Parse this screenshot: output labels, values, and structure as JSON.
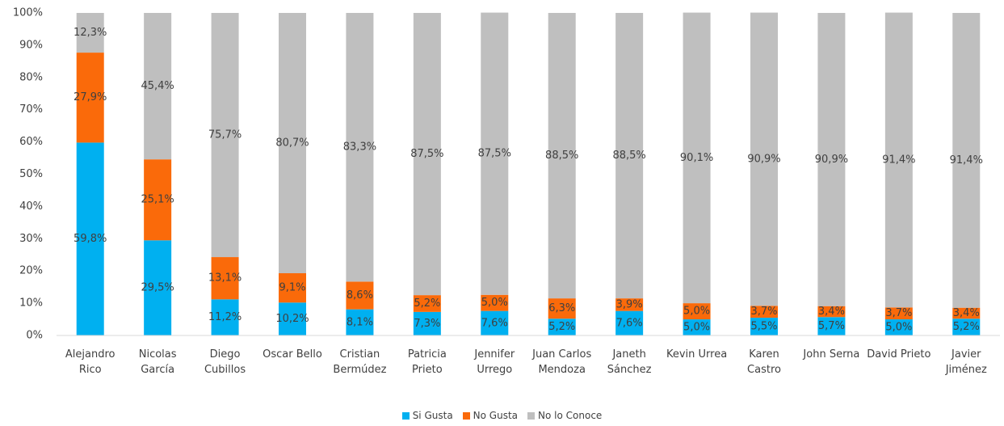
{
  "chart_data": {
    "type": "stacked_bar",
    "categories": [
      "Alejandro Rico",
      "Nicolas García",
      "Diego Cubillos",
      "Oscar Bello",
      "Cristian Bermúdez",
      "Patricia Prieto",
      "Jennifer Urrego",
      "Juan Carlos Mendoza",
      "Janeth Sánchez",
      "Kevin Urrea",
      "Karen Castro",
      "John Serna",
      "David Prieto",
      "Javier Jiménez"
    ],
    "series": [
      {
        "name": "Si Gusta",
        "color": "#00b0f0",
        "values": [
          59.8,
          29.5,
          11.2,
          10.2,
          8.1,
          7.3,
          7.6,
          5.2,
          7.6,
          5.0,
          5.5,
          5.7,
          5.0,
          5.2
        ],
        "value_labels": [
          "59,8%",
          "29,5%",
          "11,2%",
          "10,2%",
          "8,1%",
          "7,3%",
          "7,6%",
          "5,2%",
          "7,6%",
          "5,0%",
          "5,5%",
          "5,7%",
          "5,0%",
          "5,2%"
        ]
      },
      {
        "name": "No Gusta",
        "color": "#fa6a0a",
        "values": [
          27.9,
          25.1,
          13.1,
          9.1,
          8.6,
          5.2,
          5.0,
          6.3,
          3.9,
          5.0,
          3.7,
          3.4,
          3.7,
          3.4
        ],
        "value_labels": [
          "27,9%",
          "25,1%",
          "13,1%",
          "9,1%",
          "8,6%",
          "5,2%",
          "5,0%",
          "6,3%",
          "3,9%",
          "5,0%",
          "3,7%",
          "3,4%",
          "3,7%",
          "3,4%"
        ]
      },
      {
        "name": "No lo Conoce",
        "color": "#bfbfbf",
        "values": [
          12.3,
          45.4,
          75.7,
          80.7,
          83.3,
          87.5,
          87.5,
          88.5,
          88.5,
          90.1,
          90.9,
          90.9,
          91.4,
          91.4
        ],
        "value_labels": [
          "12,3%",
          "45,4%",
          "75,7%",
          "80,7%",
          "83,3%",
          "87,5%",
          "87,5%",
          "88,5%",
          "88,5%",
          "90,1%",
          "90,9%",
          "90,9%",
          "91,4%",
          "91,4%"
        ]
      }
    ],
    "ylim": [
      0,
      100
    ],
    "yticks": [
      {
        "value": 0,
        "label": "0%"
      },
      {
        "value": 10,
        "label": "10%"
      },
      {
        "value": 20,
        "label": "20%"
      },
      {
        "value": 30,
        "label": "30%"
      },
      {
        "value": 40,
        "label": "40%"
      },
      {
        "value": 50,
        "label": "50%"
      },
      {
        "value": 60,
        "label": "60%"
      },
      {
        "value": 70,
        "label": "70%"
      },
      {
        "value": 80,
        "label": "80%"
      },
      {
        "value": 90,
        "label": "90%"
      },
      {
        "value": 100,
        "label": "100%"
      }
    ],
    "legend": "bottom"
  }
}
